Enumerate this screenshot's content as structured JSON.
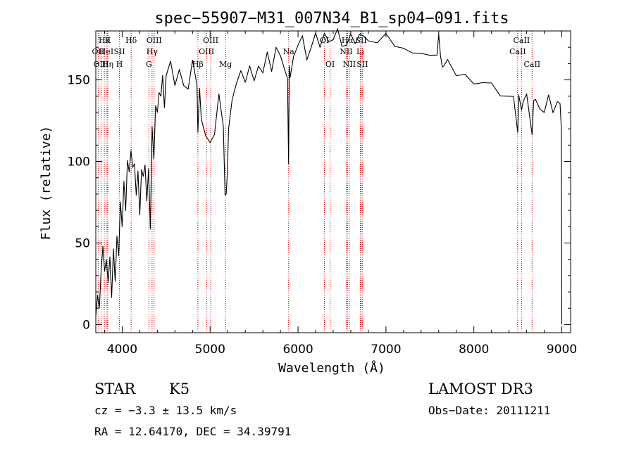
{
  "chart_data": {
    "type": "line",
    "title": "spec−55907−M31_007N34_B1_sp04−091.fits",
    "xlabel": "Wavelength (Å)",
    "ylabel": "Flux (relative)",
    "xlim": [
      3700,
      9100
    ],
    "ylim": [
      -5,
      180
    ],
    "x_ticks": [
      4000,
      5000,
      6000,
      7000,
      8000,
      9000
    ],
    "y_ticks": [
      0,
      50,
      100,
      150
    ],
    "series": [
      {
        "name": "spectrum",
        "color": "#000000",
        "x": [
          3700,
          3720,
          3740,
          3760,
          3780,
          3800,
          3820,
          3840,
          3860,
          3880,
          3900,
          3920,
          3940,
          3960,
          3980,
          4000,
          4020,
          4040,
          4060,
          4080,
          4100,
          4120,
          4140,
          4160,
          4180,
          4200,
          4220,
          4240,
          4260,
          4280,
          4300,
          4320,
          4340,
          4360,
          4380,
          4400,
          4420,
          4440,
          4460,
          4480,
          4500,
          4550,
          4600,
          4650,
          4700,
          4750,
          4800,
          4850,
          4861,
          4880,
          4900,
          4950,
          5000,
          5050,
          5100,
          5150,
          5170,
          5183,
          5195,
          5210,
          5250,
          5300,
          5350,
          5400,
          5450,
          5500,
          5550,
          5600,
          5650,
          5700,
          5750,
          5800,
          5850,
          5880,
          5893,
          5900,
          5910,
          5950,
          6000,
          6050,
          6100,
          6150,
          6200,
          6250,
          6300,
          6350,
          6400,
          6450,
          6500,
          6550,
          6600,
          6650,
          6700,
          6750,
          6800,
          6900,
          7000,
          7100,
          7200,
          7300,
          7400,
          7500,
          7580,
          7600,
          7620,
          7640,
          7660,
          7700,
          7800,
          7900,
          8000,
          8100,
          8200,
          8300,
          8400,
          8450,
          8498,
          8510,
          8542,
          8560,
          8600,
          8662,
          8680,
          8700,
          8750,
          8800,
          8850,
          8900,
          8950,
          8980,
          8995,
          9000
        ],
        "values": [
          5,
          18,
          10,
          35,
          48,
          30,
          42,
          25,
          38,
          18,
          45,
          30,
          55,
          40,
          78,
          60,
          85,
          72,
          100,
          90,
          108,
          95,
          102,
          80,
          92,
          70,
          95,
          88,
          100,
          75,
          92,
          60,
          120,
          105,
          135,
          128,
          145,
          140,
          150,
          135,
          152,
          158,
          148,
          155,
          150,
          145,
          160,
          150,
          118,
          142,
          128,
          115,
          108,
          118,
          140,
          125,
          80,
          78,
          95,
          120,
          135,
          150,
          155,
          145,
          160,
          148,
          162,
          155,
          165,
          158,
          170,
          162,
          158,
          150,
          95,
          160,
          150,
          168,
          172,
          175,
          165,
          170,
          176,
          172,
          178,
          170,
          176,
          180,
          174,
          172,
          176,
          175,
          178,
          174,
          176,
          172,
          175,
          172,
          168,
          170,
          167,
          163,
          168,
          178,
          162,
          160,
          158,
          159,
          154,
          152,
          151,
          149,
          146,
          143,
          140,
          137,
          120,
          140,
          128,
          138,
          140,
          120,
          138,
          136,
          135,
          130,
          138,
          132,
          136,
          132,
          120,
          0
        ]
      }
    ],
    "line_markers": [
      {
        "label": "Hθ",
        "x": 3797,
        "row": 1
      },
      {
        "label": "OII",
        "x": 3727,
        "row": 2
      },
      {
        "label": "OIII",
        "x": 3760,
        "row": 3
      },
      {
        "label": "K",
        "x": 3834,
        "row": 1
      },
      {
        "label": "HeI",
        "x": 3820,
        "row": 2
      },
      {
        "label": "Hη",
        "x": 3835,
        "row": 3
      },
      {
        "label": "Hδ",
        "x": 4102,
        "row": 1
      },
      {
        "label": "SII",
        "x": 3969,
        "row": 2
      },
      {
        "label": "H",
        "x": 3969,
        "row": 3
      },
      {
        "label": "OIII",
        "x": 4363,
        "row": 1
      },
      {
        "label": "Hγ",
        "x": 4340,
        "row": 2
      },
      {
        "label": "G",
        "x": 4304,
        "row": 3
      },
      {
        "label": "Hβ",
        "x": 4861,
        "row": 3
      },
      {
        "label": "OIII",
        "x": 5007,
        "row": 1
      },
      {
        "label": "OIII",
        "x": 4959,
        "row": 2
      },
      {
        "label": "Mg",
        "x": 5175,
        "row": 3
      },
      {
        "label": "Na",
        "x": 5893,
        "row": 2
      },
      {
        "label": "OI",
        "x": 6300,
        "row": 1
      },
      {
        "label": "OI",
        "x": 6364,
        "row": 3
      },
      {
        "label": "Hα",
        "x": 6563,
        "row": 1
      },
      {
        "label": "NII",
        "x": 6548,
        "row": 2
      },
      {
        "label": "NII",
        "x": 6584,
        "row": 3
      },
      {
        "label": "SII",
        "x": 6717,
        "row": 1
      },
      {
        "label": "Li",
        "x": 6708,
        "row": 2
      },
      {
        "label": "SII",
        "x": 6731,
        "row": 3
      },
      {
        "label": "CaII",
        "x": 8542,
        "row": 1
      },
      {
        "label": "CaII",
        "x": 8498,
        "row": 2
      },
      {
        "label": "CaII",
        "x": 8662,
        "row": 3
      }
    ]
  },
  "info": {
    "class_label": "STAR",
    "subclass": "K5",
    "survey": "LAMOST DR3",
    "redshift_text": "cz = −3.3 ± 13.5 km/s",
    "obs_date": "Obs−Date: 20111211",
    "coords_text": "RA =  12.64170, DEC =  34.39791"
  }
}
